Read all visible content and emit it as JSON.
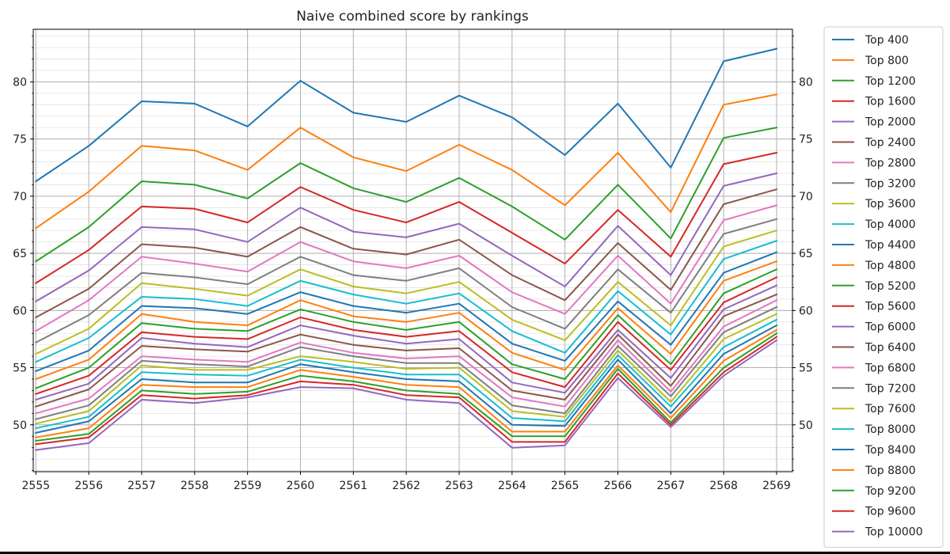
{
  "chart_data": {
    "type": "line",
    "title": "Naive combined score by rankings",
    "xlabel": "",
    "ylabel": "",
    "x": [
      2555,
      2556,
      2557,
      2558,
      2559,
      2560,
      2561,
      2562,
      2563,
      2564,
      2565,
      2566,
      2567,
      2568,
      2569
    ],
    "xlim": [
      2554.95,
      2569.3
    ],
    "ylim": [
      45.9,
      84.6
    ],
    "yticks": [
      50,
      55,
      60,
      65,
      70,
      75,
      80
    ],
    "ytick_minor_step": 1,
    "grid": true,
    "twin_y_axis": true,
    "legend_position": "outside-right",
    "series": [
      {
        "name": "Top 400",
        "color": "#1f77b4",
        "values": [
          71.3,
          74.4,
          78.3,
          78.1,
          76.1,
          80.1,
          77.3,
          76.5,
          78.8,
          76.9,
          73.6,
          78.1,
          72.5,
          81.8,
          82.9
        ]
      },
      {
        "name": "Top 800",
        "color": "#ff7f0e",
        "values": [
          67.2,
          70.4,
          74.4,
          74.0,
          72.3,
          76.0,
          73.4,
          72.2,
          74.5,
          72.3,
          69.2,
          73.8,
          68.6,
          78.0,
          78.9
        ]
      },
      {
        "name": "Top 1200",
        "color": "#2ca02c",
        "values": [
          64.3,
          67.3,
          71.3,
          71.0,
          69.8,
          72.9,
          70.7,
          69.5,
          71.6,
          69.1,
          66.2,
          71.0,
          66.3,
          75.1,
          76.0
        ]
      },
      {
        "name": "Top 1600",
        "color": "#d62728",
        "values": [
          62.4,
          65.3,
          69.1,
          68.9,
          67.7,
          70.8,
          68.8,
          67.7,
          69.5,
          66.8,
          64.1,
          68.8,
          64.7,
          72.8,
          73.8
        ]
      },
      {
        "name": "Top 2000",
        "color": "#9467bd",
        "values": [
          60.8,
          63.5,
          67.3,
          67.1,
          66.0,
          69.0,
          66.9,
          66.4,
          67.6,
          64.8,
          62.1,
          67.4,
          63.1,
          70.9,
          72.0
        ]
      },
      {
        "name": "Top 2400",
        "color": "#8c564b",
        "values": [
          59.4,
          61.9,
          65.8,
          65.5,
          64.7,
          67.3,
          65.4,
          64.9,
          66.2,
          63.1,
          60.9,
          65.9,
          61.8,
          69.3,
          70.6
        ]
      },
      {
        "name": "Top 2800",
        "color": "#e377c2",
        "values": [
          58.2,
          60.9,
          64.7,
          64.1,
          63.4,
          66.0,
          64.3,
          63.7,
          64.8,
          61.6,
          59.7,
          64.8,
          60.6,
          67.9,
          69.2
        ]
      },
      {
        "name": "Top 3200",
        "color": "#7f7f7f",
        "values": [
          57.2,
          59.6,
          63.3,
          62.9,
          62.3,
          64.7,
          63.1,
          62.6,
          63.7,
          60.3,
          58.4,
          63.6,
          59.8,
          66.7,
          68.0
        ]
      },
      {
        "name": "Top 3600",
        "color": "#bcbd22",
        "values": [
          56.2,
          58.4,
          62.4,
          61.9,
          61.3,
          63.6,
          62.1,
          61.5,
          62.5,
          59.2,
          57.4,
          62.5,
          58.7,
          65.6,
          67.0
        ]
      },
      {
        "name": "Top 4000",
        "color": "#17becf",
        "values": [
          55.5,
          57.6,
          61.2,
          61.0,
          60.4,
          62.6,
          61.4,
          60.6,
          61.5,
          58.2,
          56.3,
          61.7,
          57.9,
          64.5,
          66.1
        ]
      },
      {
        "name": "Top 4400",
        "color": "#1f77b4",
        "values": [
          54.7,
          56.5,
          60.4,
          60.2,
          59.7,
          61.6,
          60.4,
          59.8,
          60.6,
          57.1,
          55.6,
          60.8,
          57.0,
          63.3,
          65.1
        ]
      },
      {
        "name": "Top 4800",
        "color": "#ff7f0e",
        "values": [
          54.0,
          55.7,
          59.7,
          59.0,
          58.7,
          60.9,
          59.5,
          59.0,
          59.8,
          56.3,
          54.8,
          60.2,
          56.2,
          62.6,
          64.3
        ]
      },
      {
        "name": "Top 5200",
        "color": "#2ca02c",
        "values": [
          53.2,
          55.0,
          58.9,
          58.4,
          58.2,
          60.1,
          59.0,
          58.3,
          59.0,
          55.3,
          54.0,
          59.6,
          55.3,
          61.5,
          63.6
        ]
      },
      {
        "name": "Top 5600",
        "color": "#d62728",
        "values": [
          52.7,
          54.3,
          58.1,
          57.7,
          57.5,
          59.4,
          58.3,
          57.7,
          58.2,
          54.6,
          53.3,
          59.0,
          54.8,
          60.7,
          62.9
        ]
      },
      {
        "name": "Top 6000",
        "color": "#9467bd",
        "values": [
          52.2,
          53.6,
          57.6,
          57.1,
          56.8,
          58.7,
          57.8,
          57.1,
          57.5,
          53.7,
          52.8,
          58.3,
          54.1,
          60.1,
          62.2
        ]
      },
      {
        "name": "Top 6400",
        "color": "#8c564b",
        "values": [
          51.6,
          53.1,
          56.9,
          56.6,
          56.4,
          57.9,
          57.0,
          56.5,
          56.7,
          53.0,
          52.2,
          57.9,
          53.4,
          59.5,
          61.4
        ]
      },
      {
        "name": "Top 6800",
        "color": "#e377c2",
        "values": [
          51.0,
          52.3,
          56.0,
          55.7,
          55.5,
          57.2,
          56.3,
          55.8,
          56.0,
          52.4,
          51.6,
          57.4,
          52.9,
          58.6,
          60.9
        ]
      },
      {
        "name": "Top 7200",
        "color": "#7f7f7f",
        "values": [
          50.5,
          51.7,
          55.6,
          55.3,
          55.1,
          56.8,
          56.0,
          55.4,
          55.4,
          51.7,
          51.0,
          56.9,
          52.5,
          58.1,
          60.3
        ]
      },
      {
        "name": "Top 7600",
        "color": "#bcbd22",
        "values": [
          50.1,
          51.2,
          55.2,
          54.8,
          54.8,
          56.0,
          55.5,
          54.9,
          55.0,
          51.2,
          50.7,
          56.5,
          52.0,
          57.5,
          59.7
        ]
      },
      {
        "name": "Top 8000",
        "color": "#17becf",
        "values": [
          49.7,
          50.7,
          54.6,
          54.4,
          54.3,
          55.7,
          55.0,
          54.4,
          54.4,
          50.6,
          50.3,
          56.1,
          51.6,
          56.8,
          59.2
        ]
      },
      {
        "name": "Top 8400",
        "color": "#1f77b4",
        "values": [
          49.3,
          50.3,
          54.0,
          53.7,
          53.7,
          55.3,
          54.6,
          54.0,
          53.8,
          50.0,
          49.9,
          55.7,
          51.0,
          56.2,
          58.7
        ]
      },
      {
        "name": "Top 8800",
        "color": "#ff7f0e",
        "values": [
          48.9,
          49.7,
          53.5,
          53.3,
          53.3,
          54.8,
          54.2,
          53.5,
          53.3,
          49.4,
          49.4,
          55.2,
          50.6,
          55.6,
          58.3
        ]
      },
      {
        "name": "Top 9200",
        "color": "#2ca02c",
        "values": [
          48.6,
          49.2,
          53.0,
          52.7,
          52.9,
          54.3,
          53.8,
          53.0,
          52.7,
          49.0,
          49.0,
          54.9,
          50.2,
          55.0,
          58.0
        ]
      },
      {
        "name": "Top 9600",
        "color": "#d62728",
        "values": [
          48.3,
          48.9,
          52.6,
          52.3,
          52.6,
          53.8,
          53.5,
          52.6,
          52.4,
          48.5,
          48.5,
          54.5,
          50.0,
          54.6,
          57.7
        ]
      },
      {
        "name": "Top 10000",
        "color": "#9467bd",
        "values": [
          47.8,
          48.4,
          52.2,
          51.9,
          52.4,
          53.3,
          53.2,
          52.2,
          51.9,
          48.0,
          48.2,
          54.1,
          49.8,
          54.3,
          57.4
        ]
      }
    ]
  }
}
